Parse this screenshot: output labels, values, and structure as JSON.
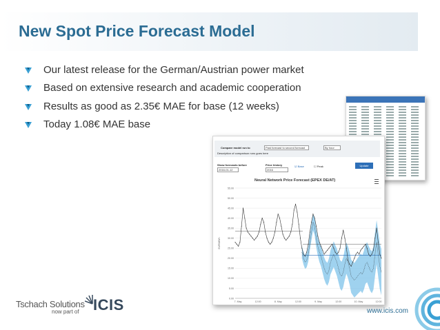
{
  "slide": {
    "title": "New Spot Price Forecast Model",
    "bullets": [
      "Our latest release for the German/Austrian power market",
      "Based on extensive research and academic cooperation",
      "Results as good as 2.35€ MAE for base (12 weeks)",
      "Today 1.08€ MAE base"
    ],
    "url": "www.icis.com",
    "logo": {
      "name": "Tschach Solutions",
      "sub": "now part of",
      "brand": "ICIS"
    },
    "colors": {
      "title": "#2b6c93",
      "bullet": "#3aa0d4",
      "forecast_band": "#7fc3ea",
      "accent": "#2d6fb8"
    }
  },
  "app": {
    "compare_label": "Compare model run to",
    "compare_value": "Past forecast to second forecast",
    "per_label": "By hour",
    "description_label": "Description of comparison runs goes here",
    "show_label": "Show forecasts before",
    "show_value": "2016-01-12",
    "price_label": "Price history",
    "price_value": "2016",
    "base_label": "Base",
    "peak_label": "Peak",
    "button": "Update",
    "chart_title": "Neural Network Price Forecast (EPEX DE/AT)"
  },
  "chart_data": {
    "type": "line",
    "title": "Neural Network Price Forecast (EPEX DE/AT)",
    "ylabel": "EUR/MWh",
    "ylim": [
      0,
      55
    ],
    "yticks": [
      "55.00",
      "50.00",
      "45.00",
      "40.00",
      "35.00",
      "30.00",
      "25.00",
      "20.00",
      "15.00",
      "10.00",
      "5.00",
      "0.00"
    ],
    "xticks": [
      "7. May",
      "12:00",
      "8. May",
      "12:00",
      "9. May",
      "12:00",
      "10. May",
      "12:00"
    ],
    "series": [
      {
        "style": "actual",
        "values": [
          28,
          27,
          26,
          28,
          36,
          45,
          40,
          35,
          33,
          32,
          31,
          30,
          29,
          30,
          31,
          33,
          37,
          40,
          38,
          33,
          30,
          28,
          27,
          28,
          30,
          33,
          38,
          42,
          40,
          36,
          32,
          30,
          29,
          30,
          31,
          33,
          37,
          44,
          47,
          43,
          37,
          30,
          25,
          22,
          21,
          23,
          27,
          33,
          38,
          42,
          40,
          36,
          31,
          28,
          26,
          24,
          22,
          23,
          24,
          25,
          26,
          27,
          25,
          23,
          22,
          23,
          25,
          30,
          34,
          30,
          25,
          19,
          17,
          16,
          18,
          20,
          22,
          23,
          22,
          24,
          25,
          26,
          27,
          25,
          22,
          21,
          22,
          24,
          30,
          35,
          28,
          22,
          20
        ]
      },
      {
        "style": "forecast",
        "values": [
          null,
          null,
          null,
          null,
          null,
          null,
          null,
          null,
          null,
          null,
          null,
          null,
          null,
          null,
          null,
          null,
          null,
          null,
          null,
          null,
          null,
          null,
          null,
          null,
          null,
          null,
          null,
          null,
          null,
          null,
          null,
          null,
          null,
          null,
          null,
          null,
          null,
          null,
          null,
          null,
          null,
          null,
          23,
          20,
          18,
          19,
          22,
          28,
          33,
          38,
          36,
          30,
          26,
          23,
          21,
          18,
          15,
          13,
          12,
          14,
          18,
          20,
          22,
          20,
          18,
          15,
          12,
          11,
          13,
          17,
          20,
          18,
          15,
          11,
          10,
          9,
          10,
          11,
          12,
          13,
          12,
          14,
          17,
          18,
          16,
          14,
          13,
          15,
          22,
          28,
          22,
          16,
          13
        ]
      }
    ],
    "grid": true
  }
}
